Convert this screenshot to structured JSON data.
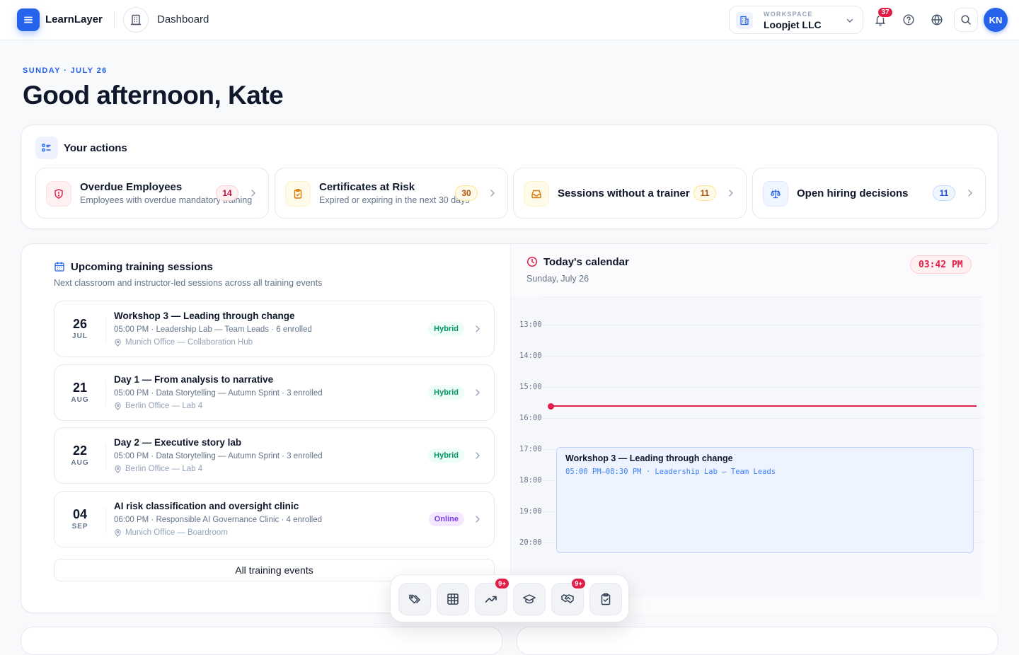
{
  "app": {
    "name": "LearnLayer",
    "page": "Dashboard"
  },
  "workspace": {
    "kicker": "WORKSPACE",
    "name": "Loopjet LLC"
  },
  "notifications": {
    "count": "37"
  },
  "user": {
    "initials": "KN"
  },
  "header": {
    "date": "SUNDAY · JULY 26",
    "greeting": "Good afternoon, Kate"
  },
  "actions": {
    "title": "Your actions",
    "items": [
      {
        "title": "Overdue Employees",
        "subtitle": "Employees with overdue mandatory training",
        "count": "14",
        "tone": "red",
        "icon": "shield-alert-icon"
      },
      {
        "title": "Certificates at Risk",
        "subtitle": "Expired or expiring in the next 30 days",
        "count": "30",
        "tone": "amber",
        "icon": "clipboard-check-icon"
      },
      {
        "title": "Sessions without a trainer",
        "subtitle": "",
        "count": "11",
        "tone": "amber",
        "icon": "inbox-icon"
      },
      {
        "title": "Open hiring decisions",
        "subtitle": "",
        "count": "11",
        "tone": "blue",
        "icon": "scale-icon"
      }
    ]
  },
  "upcoming": {
    "title": "Upcoming training sessions",
    "subtitle": "Next classroom and instructor-led sessions across all training events",
    "sessions": [
      {
        "day": "26",
        "month": "JUL",
        "title": "Workshop 3 — Leading through change",
        "meta": "05:00 PM · Leadership Lab — Team Leads · 6 enrolled",
        "location": "Munich Office — Collaboration Hub",
        "tag": "Hybrid"
      },
      {
        "day": "21",
        "month": "AUG",
        "title": "Day 1 — From analysis to narrative",
        "meta": "05:00 PM · Data Storytelling — Autumn Sprint · 3 enrolled",
        "location": "Berlin Office — Lab 4",
        "tag": "Hybrid"
      },
      {
        "day": "22",
        "month": "AUG",
        "title": "Day 2 — Executive story lab",
        "meta": "05:00 PM · Data Storytelling — Autumn Sprint · 3 enrolled",
        "location": "Berlin Office — Lab 4",
        "tag": "Hybrid"
      },
      {
        "day": "04",
        "month": "SEP",
        "title": "AI risk classification and oversight clinic",
        "meta": "06:00 PM · Responsible AI Governance Clinic · 4 enrolled",
        "location": "Munich Office — Boardroom",
        "tag": "Online"
      }
    ],
    "all_label": "All training events"
  },
  "calendar": {
    "title": "Today's calendar",
    "date": "Sunday, July 26",
    "clock": "03:42 PM",
    "hours": [
      "13:00",
      "14:00",
      "15:00",
      "16:00",
      "17:00",
      "18:00",
      "19:00",
      "20:00"
    ],
    "event": {
      "title": "Workshop 3 — Leading through change",
      "meta": "05:00 PM–08:30 PM · Leadership Lab — Team Leads"
    }
  },
  "dock": {
    "items": [
      {
        "icon": "tags-icon",
        "badge": ""
      },
      {
        "icon": "table-icon",
        "badge": ""
      },
      {
        "icon": "trending-up-icon",
        "badge": "9+"
      },
      {
        "icon": "graduation-cap-icon",
        "badge": ""
      },
      {
        "icon": "handshake-icon",
        "badge": "9+"
      },
      {
        "icon": "clipboard-check-icon",
        "badge": ""
      }
    ]
  },
  "colors": {
    "accent": "#2563eb",
    "danger": "#e11d48",
    "success": "#059669"
  }
}
